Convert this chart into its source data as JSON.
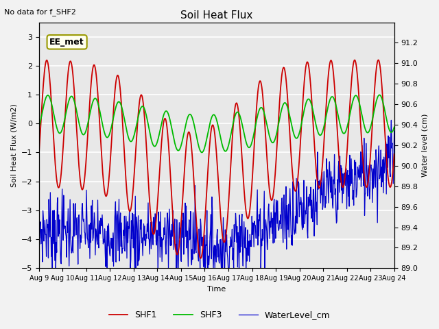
{
  "title": "Soil Heat Flux",
  "top_left_text": "No data for f_SHF2",
  "annotation_box": "EE_met",
  "ylabel_left": "Soil Heat Flux (W/m2)",
  "ylabel_right": "Water level (cm)",
  "xlabel": "Time",
  "ylim_left": [
    -5.0,
    3.5
  ],
  "ylim_right": [
    89.0,
    91.4
  ],
  "yticks_left": [
    -5.0,
    -4.0,
    -3.0,
    -2.0,
    -1.0,
    0.0,
    1.0,
    2.0,
    3.0
  ],
  "yticks_right": [
    89.0,
    89.2,
    89.4,
    89.6,
    89.8,
    90.0,
    90.2,
    90.4,
    90.6,
    90.8,
    91.0,
    91.2
  ],
  "xtick_labels": [
    "Aug 9",
    "Aug 10",
    "Aug 11",
    "Aug 12",
    "Aug 13",
    "Aug 14",
    "Aug 15",
    "Aug 16",
    "Aug 17",
    "Aug 18",
    "Aug 19",
    "Aug 20",
    "Aug 21",
    "Aug 22",
    "Aug 23",
    "Aug 24"
  ],
  "colors": {
    "SHF1": "#cc0000",
    "SHF3": "#00bb00",
    "WaterLevel": "#0000cc",
    "background": "#e8e8e8",
    "fig_bg": "#f2f2f2"
  },
  "legend_labels": [
    "SHF1",
    "SHF3",
    "WaterLevel_cm"
  ],
  "n_days": 15,
  "pts_per_day": 48
}
